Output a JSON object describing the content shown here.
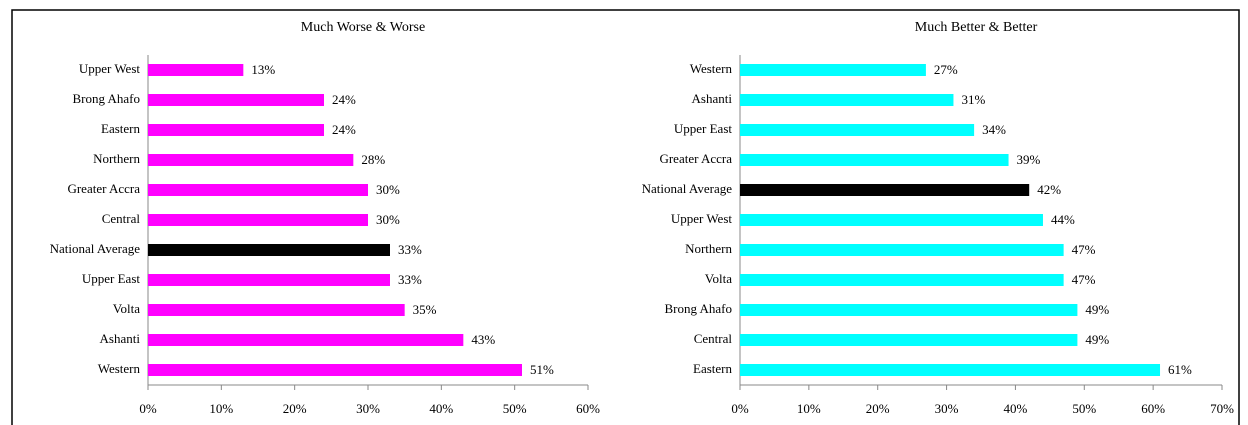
{
  "chart_data": [
    {
      "type": "bar",
      "orientation": "horizontal",
      "title": "Much Worse & Worse",
      "categories": [
        "Upper West",
        "Brong Ahafo",
        "Eastern",
        "Northern",
        "Greater Accra",
        "Central",
        "National Average",
        "Upper East",
        "Volta",
        "Ashanti",
        "Western"
      ],
      "values": [
        13,
        24,
        24,
        28,
        30,
        30,
        33,
        33,
        35,
        43,
        51
      ],
      "value_labels": [
        "13%",
        "24%",
        "24%",
        "28%",
        "30%",
        "30%",
        "33%",
        "33%",
        "35%",
        "43%",
        "51%"
      ],
      "colors": [
        "#ff00ff",
        "#ff00ff",
        "#ff00ff",
        "#ff00ff",
        "#ff00ff",
        "#ff00ff",
        "#000000",
        "#ff00ff",
        "#ff00ff",
        "#ff00ff",
        "#ff00ff"
      ],
      "xlim": [
        0,
        60
      ],
      "xticks": [
        {
          "value": 0,
          "label": "0%"
        },
        {
          "value": 10,
          "label": "10%"
        },
        {
          "value": 20,
          "label": "20%"
        },
        {
          "value": 30,
          "label": "30%"
        },
        {
          "value": 40,
          "label": "40%"
        },
        {
          "value": 50,
          "label": "50%"
        },
        {
          "value": 60,
          "label": "60%"
        }
      ]
    },
    {
      "type": "bar",
      "orientation": "horizontal",
      "title": "Much Better & Better",
      "categories": [
        "Western",
        "Ashanti",
        "Upper East",
        "Greater Accra",
        "National Average",
        "Upper West",
        "Northern",
        "Volta",
        "Brong Ahafo",
        "Central",
        "Eastern"
      ],
      "values": [
        27,
        31,
        34,
        39,
        42,
        44,
        47,
        47,
        49,
        49,
        61
      ],
      "value_labels": [
        "27%",
        "31%",
        "34%",
        "39%",
        "42%",
        "44%",
        "47%",
        "47%",
        "49%",
        "49%",
        "61%"
      ],
      "colors": [
        "#00ffff",
        "#00ffff",
        "#00ffff",
        "#00ffff",
        "#000000",
        "#00ffff",
        "#00ffff",
        "#00ffff",
        "#00ffff",
        "#00ffff",
        "#00ffff"
      ],
      "xlim": [
        0,
        70
      ],
      "xticks": [
        {
          "value": 0,
          "label": "0%"
        },
        {
          "value": 10,
          "label": "10%"
        },
        {
          "value": 20,
          "label": "20%"
        },
        {
          "value": 30,
          "label": "30%"
        },
        {
          "value": 40,
          "label": "40%"
        },
        {
          "value": 50,
          "label": "50%"
        },
        {
          "value": 60,
          "label": "60%"
        },
        {
          "value": 70,
          "label": "70%"
        }
      ]
    }
  ]
}
